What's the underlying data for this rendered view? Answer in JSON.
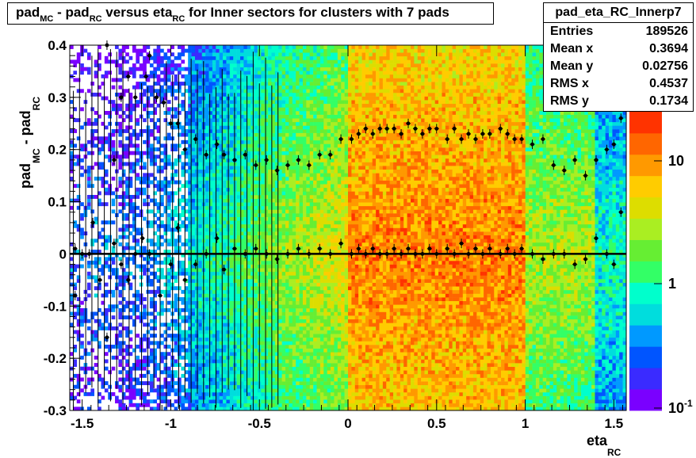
{
  "title": {
    "parts": [
      "pad",
      "MC",
      " - pad",
      "RC",
      " versus eta",
      "RC",
      " for Inner sectors for clusters with 7 pads"
    ]
  },
  "stats": {
    "name": "pad_eta_RC_Innerp7",
    "rows": [
      {
        "key": "Entries",
        "value": "189526"
      },
      {
        "key": "Mean x",
        "value": "0.3694"
      },
      {
        "key": "Mean y",
        "value": "0.02756"
      },
      {
        "key": "RMS x",
        "value": "0.4537"
      },
      {
        "key": "RMS y",
        "value": "0.1734"
      }
    ]
  },
  "chart_data": {
    "type": "heatmap",
    "title": "pad_MC - pad_RC versus eta_RC for Inner sectors for clusters with 7 pads",
    "xlabel": "eta_RC",
    "ylabel": "pad_MC - pad_RC",
    "xlim": [
      -1.57,
      1.57
    ],
    "ylim": [
      -0.3,
      0.4
    ],
    "x_ticks": [
      "-1.5",
      "-1",
      "-0.5",
      "0",
      "0.5",
      "1",
      "1.5"
    ],
    "y_ticks": [
      "-0.3",
      "-0.2",
      "-0.1",
      "0",
      "0.1",
      "0.2",
      "0.3",
      "0.4"
    ],
    "z_scale": "log",
    "z_ticks": [
      "10^-1",
      "1",
      "10"
    ],
    "palette": [
      "#7a00ff",
      "#3a2bff",
      "#0055ff",
      "#0099ff",
      "#00dddd",
      "#00ffcc",
      "#33ff66",
      "#66ee33",
      "#aaee22",
      "#dddd00",
      "#ffcc00",
      "#ff9900",
      "#ff6600",
      "#ff3300"
    ],
    "profile_upper": [
      {
        "x": -1.54,
        "y": 0.01
      },
      {
        "x": -1.44,
        "y": 0.06
      },
      {
        "x": -1.36,
        "y": 0.4
      },
      {
        "x": -1.32,
        "y": 0.18
      },
      {
        "x": -1.28,
        "y": 0.3
      },
      {
        "x": -1.24,
        "y": 0.34
      },
      {
        "x": -1.2,
        "y": 0.3
      },
      {
        "x": -1.14,
        "y": 0.34
      },
      {
        "x": -1.12,
        "y": 0.38
      },
      {
        "x": -1.08,
        "y": 0.3
      },
      {
        "x": -1.04,
        "y": 0.29
      },
      {
        "x": -1.0,
        "y": 0.25
      },
      {
        "x": -0.96,
        "y": 0.25
      },
      {
        "x": -0.92,
        "y": 0.2
      },
      {
        "x": -0.86,
        "y": 0.22
      },
      {
        "x": -0.8,
        "y": 0.19
      },
      {
        "x": -0.74,
        "y": 0.21
      },
      {
        "x": -0.7,
        "y": 0.19
      },
      {
        "x": -0.64,
        "y": 0.18
      },
      {
        "x": -0.58,
        "y": 0.19
      },
      {
        "x": -0.52,
        "y": 0.17
      },
      {
        "x": -0.46,
        "y": 0.18
      },
      {
        "x": -0.4,
        "y": 0.16
      },
      {
        "x": -0.34,
        "y": 0.17
      },
      {
        "x": -0.28,
        "y": 0.18
      },
      {
        "x": -0.22,
        "y": 0.17
      },
      {
        "x": -0.16,
        "y": 0.19
      },
      {
        "x": -0.1,
        "y": 0.19
      },
      {
        "x": -0.04,
        "y": 0.22
      },
      {
        "x": 0.02,
        "y": 0.22
      },
      {
        "x": 0.06,
        "y": 0.23
      },
      {
        "x": 0.1,
        "y": 0.24
      },
      {
        "x": 0.14,
        "y": 0.23
      },
      {
        "x": 0.18,
        "y": 0.24
      },
      {
        "x": 0.22,
        "y": 0.24
      },
      {
        "x": 0.26,
        "y": 0.24
      },
      {
        "x": 0.3,
        "y": 0.23
      },
      {
        "x": 0.34,
        "y": 0.25
      },
      {
        "x": 0.38,
        "y": 0.24
      },
      {
        "x": 0.42,
        "y": 0.23
      },
      {
        "x": 0.46,
        "y": 0.24
      },
      {
        "x": 0.5,
        "y": 0.24
      },
      {
        "x": 0.56,
        "y": 0.22
      },
      {
        "x": 0.6,
        "y": 0.24
      },
      {
        "x": 0.64,
        "y": 0.22
      },
      {
        "x": 0.68,
        "y": 0.23
      },
      {
        "x": 0.72,
        "y": 0.22
      },
      {
        "x": 0.76,
        "y": 0.23
      },
      {
        "x": 0.8,
        "y": 0.23
      },
      {
        "x": 0.86,
        "y": 0.24
      },
      {
        "x": 0.9,
        "y": 0.23
      },
      {
        "x": 0.94,
        "y": 0.22
      },
      {
        "x": 0.98,
        "y": 0.22
      },
      {
        "x": 1.04,
        "y": 0.21
      },
      {
        "x": 1.1,
        "y": 0.22
      },
      {
        "x": 1.16,
        "y": 0.17
      },
      {
        "x": 1.22,
        "y": 0.16
      },
      {
        "x": 1.28,
        "y": 0.18
      },
      {
        "x": 1.34,
        "y": 0.15
      },
      {
        "x": 1.4,
        "y": 0.18
      },
      {
        "x": 1.46,
        "y": 0.2
      },
      {
        "x": 1.5,
        "y": 0.21
      },
      {
        "x": 1.54,
        "y": 0.26
      }
    ],
    "profile_lower": [
      {
        "x": -1.54,
        "y": -0.08
      },
      {
        "x": -1.5,
        "y": 0.0
      },
      {
        "x": -1.46,
        "y": 0.0
      },
      {
        "x": -1.4,
        "y": -0.05
      },
      {
        "x": -1.36,
        "y": -0.16
      },
      {
        "x": -1.32,
        "y": 0.02
      },
      {
        "x": -1.28,
        "y": -0.02
      },
      {
        "x": -1.24,
        "y": -0.05
      },
      {
        "x": -1.2,
        "y": 0.0
      },
      {
        "x": -1.16,
        "y": 0.03
      },
      {
        "x": -1.12,
        "y": 0.0
      },
      {
        "x": -1.06,
        "y": -0.08
      },
      {
        "x": -1.0,
        "y": -0.02
      },
      {
        "x": -0.96,
        "y": 0.05
      },
      {
        "x": -0.92,
        "y": -0.05
      },
      {
        "x": -0.86,
        "y": -0.02
      },
      {
        "x": -0.8,
        "y": 0.0
      },
      {
        "x": -0.74,
        "y": 0.03
      },
      {
        "x": -0.7,
        "y": -0.03
      },
      {
        "x": -0.64,
        "y": 0.01
      },
      {
        "x": -0.58,
        "y": 0.0
      },
      {
        "x": -0.52,
        "y": 0.01
      },
      {
        "x": -0.46,
        "y": 0.0
      },
      {
        "x": -0.4,
        "y": -0.01
      },
      {
        "x": -0.34,
        "y": 0.0
      },
      {
        "x": -0.28,
        "y": 0.01
      },
      {
        "x": -0.22,
        "y": 0.0
      },
      {
        "x": -0.16,
        "y": 0.01
      },
      {
        "x": -0.1,
        "y": 0.0
      },
      {
        "x": -0.04,
        "y": 0.02
      },
      {
        "x": 0.02,
        "y": 0.0
      },
      {
        "x": 0.06,
        "y": 0.01
      },
      {
        "x": 0.1,
        "y": 0.0
      },
      {
        "x": 0.14,
        "y": 0.01
      },
      {
        "x": 0.18,
        "y": 0.0
      },
      {
        "x": 0.22,
        "y": 0.0
      },
      {
        "x": 0.26,
        "y": 0.01
      },
      {
        "x": 0.3,
        "y": 0.0
      },
      {
        "x": 0.34,
        "y": 0.01
      },
      {
        "x": 0.38,
        "y": 0.0
      },
      {
        "x": 0.42,
        "y": 0.0
      },
      {
        "x": 0.46,
        "y": 0.01
      },
      {
        "x": 0.5,
        "y": 0.0
      },
      {
        "x": 0.56,
        "y": 0.01
      },
      {
        "x": 0.6,
        "y": 0.0
      },
      {
        "x": 0.64,
        "y": 0.02
      },
      {
        "x": 0.68,
        "y": 0.0
      },
      {
        "x": 0.72,
        "y": 0.01
      },
      {
        "x": 0.76,
        "y": 0.0
      },
      {
        "x": 0.8,
        "y": 0.01
      },
      {
        "x": 0.86,
        "y": 0.0
      },
      {
        "x": 0.9,
        "y": 0.01
      },
      {
        "x": 0.94,
        "y": 0.0
      },
      {
        "x": 0.98,
        "y": 0.01
      },
      {
        "x": 1.04,
        "y": 0.0
      },
      {
        "x": 1.1,
        "y": -0.01
      },
      {
        "x": 1.16,
        "y": 0.0
      },
      {
        "x": 1.22,
        "y": 0.0
      },
      {
        "x": 1.28,
        "y": -0.02
      },
      {
        "x": 1.34,
        "y": -0.01
      },
      {
        "x": 1.4,
        "y": 0.03
      },
      {
        "x": 1.46,
        "y": 0.0
      },
      {
        "x": 1.5,
        "y": -0.02
      },
      {
        "x": 1.54,
        "y": 0.08
      }
    ]
  }
}
